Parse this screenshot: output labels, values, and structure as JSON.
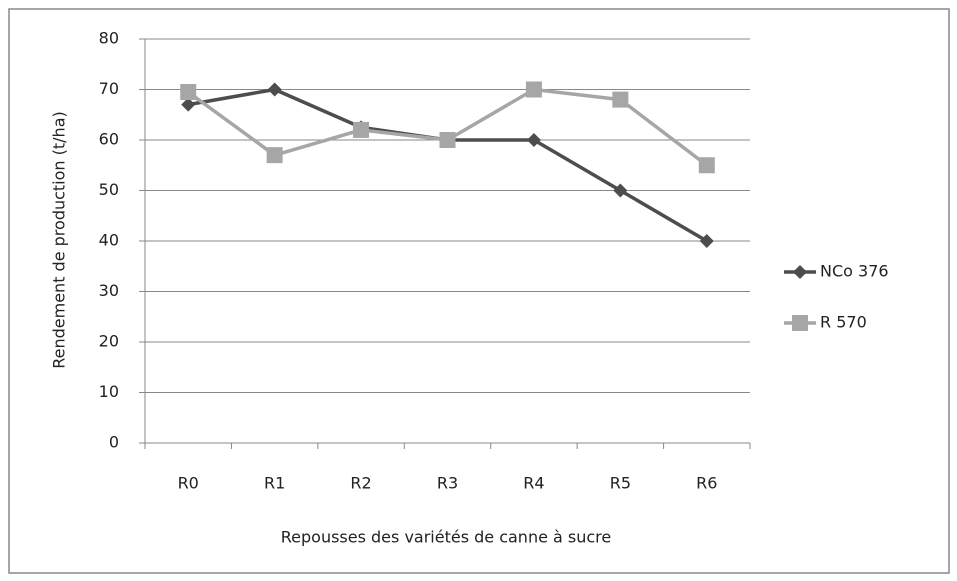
{
  "chart_data": {
    "type": "line",
    "x_label": "Repousses des variétés de canne à sucre",
    "y_label": "Rendement  de production  (t/ha)",
    "categories": [
      "R0",
      "R1",
      "R2",
      "R3",
      "R4",
      "R5",
      "R6"
    ],
    "series": [
      {
        "name": "NCo 376",
        "color": "#4d4d4d",
        "marker": "diamond",
        "values": [
          67,
          70,
          62.5,
          60,
          60,
          50,
          40
        ]
      },
      {
        "name": "R 570",
        "color": "#a6a6a6",
        "marker": "square",
        "values": [
          69.5,
          57,
          62,
          60,
          70,
          68,
          55
        ]
      }
    ],
    "ylim": [
      0,
      80
    ],
    "yticks": [
      0,
      10,
      20,
      30,
      40,
      50,
      60,
      70,
      80
    ],
    "grid": true,
    "legend": "right"
  }
}
